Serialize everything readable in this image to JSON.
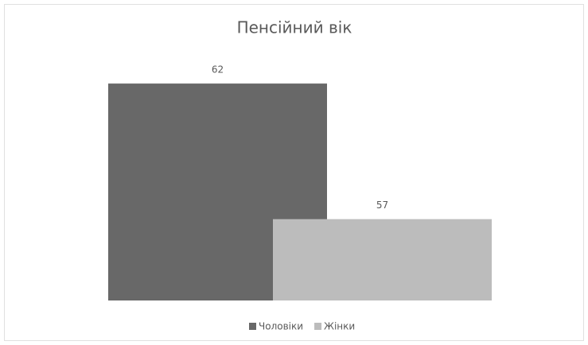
{
  "chart_data": {
    "type": "bar",
    "title": "Пенсійний вік",
    "categories": [
      null
    ],
    "series": [
      {
        "name": "Чоловіки",
        "color": "#686868",
        "values": [
          62
        ]
      },
      {
        "name": "Жінки",
        "color": "#bcbcbc",
        "values": [
          57
        ]
      }
    ],
    "ylim": [
      54,
      63
    ],
    "grid": false,
    "legend": "bottom"
  }
}
